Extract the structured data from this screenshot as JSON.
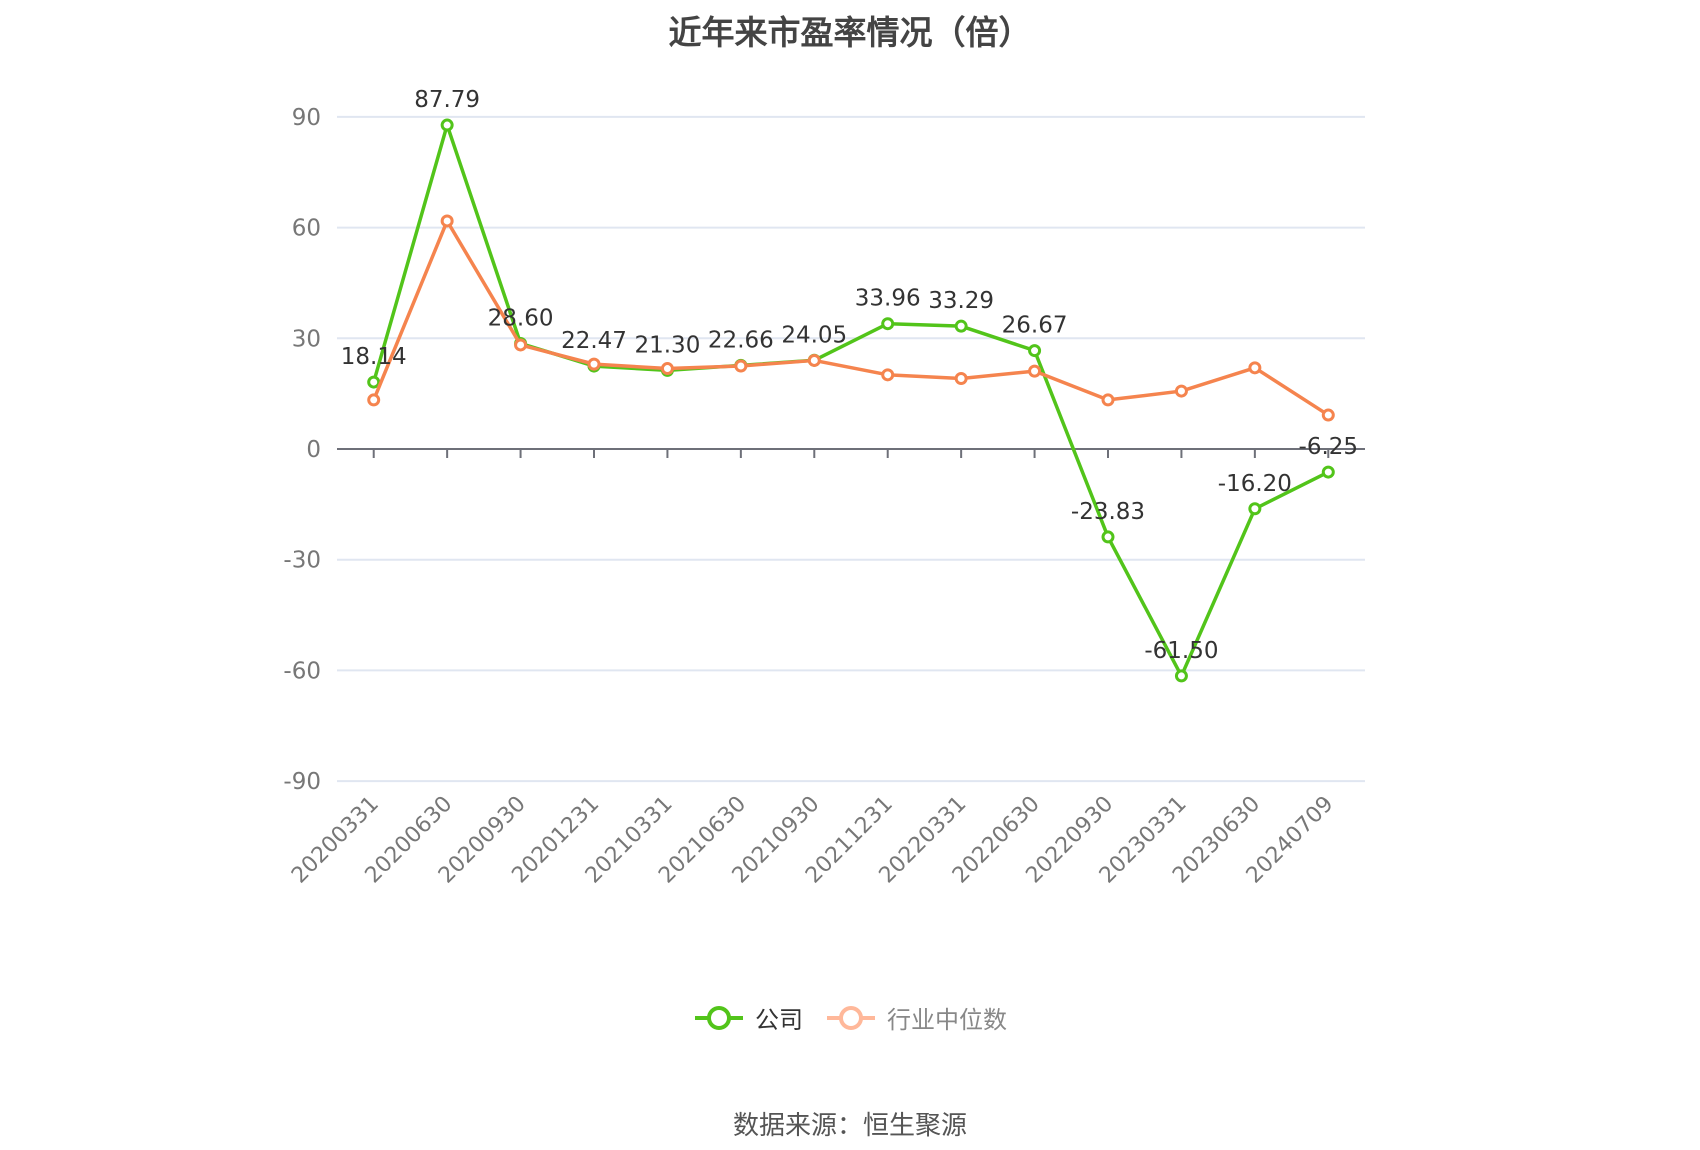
{
  "title": "近年来市盈率情况（倍）",
  "legend": [
    {
      "label": "公司",
      "color": "#52c41a",
      "text_color": "#333"
    },
    {
      "label": "行业中位数",
      "color": "#ffb89a",
      "text_color": "#888"
    }
  ],
  "source": "数据来源：恒生聚源",
  "chart_data": {
    "type": "line",
    "title": "近年来市盈率情况（倍）",
    "xlabel": "",
    "ylabel": "",
    "ylim": [
      -90,
      90
    ],
    "yticks": [
      90,
      60,
      30,
      0,
      -30,
      -60,
      -90
    ],
    "grid": true,
    "legend_position": "bottom",
    "categories": [
      "20200331",
      "20200630",
      "20200930",
      "20201231",
      "20210331",
      "20210630",
      "20210930",
      "20211231",
      "20220331",
      "20220630",
      "20220930",
      "20230331",
      "20230630",
      "20240709"
    ],
    "series": [
      {
        "name": "公司",
        "color": "#52c41a",
        "labeled": true,
        "values": [
          18.14,
          87.79,
          28.6,
          22.47,
          21.3,
          22.66,
          24.05,
          33.96,
          33.29,
          26.67,
          -23.83,
          -61.5,
          -16.2,
          -6.25
        ]
      },
      {
        "name": "行业中位数",
        "color": "#f5844e",
        "labeled": false,
        "values": [
          13.3,
          61.8,
          28.2,
          23.0,
          21.8,
          22.5,
          24.0,
          20.1,
          19.1,
          21.1,
          13.3,
          15.7,
          22.0,
          9.2
        ]
      }
    ]
  }
}
